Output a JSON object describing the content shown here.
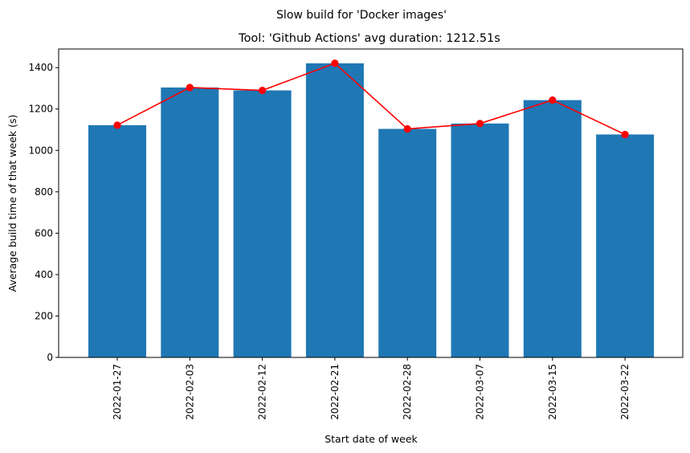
{
  "chart_data": {
    "type": "bar",
    "suptitle": "Slow build for 'Docker images'",
    "title": "Tool: 'Github Actions' avg duration: 1212.51s",
    "xlabel": "Start date of week",
    "ylabel": "Average build time of that week (s)",
    "categories": [
      "2022-01-27",
      "2022-02-03",
      "2022-02-12",
      "2022-02-21",
      "2022-02-28",
      "2022-03-07",
      "2022-03-15",
      "2022-03-22"
    ],
    "values": [
      1122,
      1304,
      1290,
      1421,
      1104,
      1130,
      1243,
      1077
    ],
    "line_overlay": {
      "values": [
        1122,
        1304,
        1290,
        1421,
        1104,
        1130,
        1243,
        1077
      ],
      "color": "#ff0000",
      "marker": "circle"
    },
    "bar_color": "#1f77b4",
    "ylim": [
      0,
      1490
    ],
    "yticks": [
      0,
      200,
      400,
      600,
      800,
      1000,
      1200,
      1400
    ],
    "grid": false,
    "xtick_rotation": "vertical"
  }
}
